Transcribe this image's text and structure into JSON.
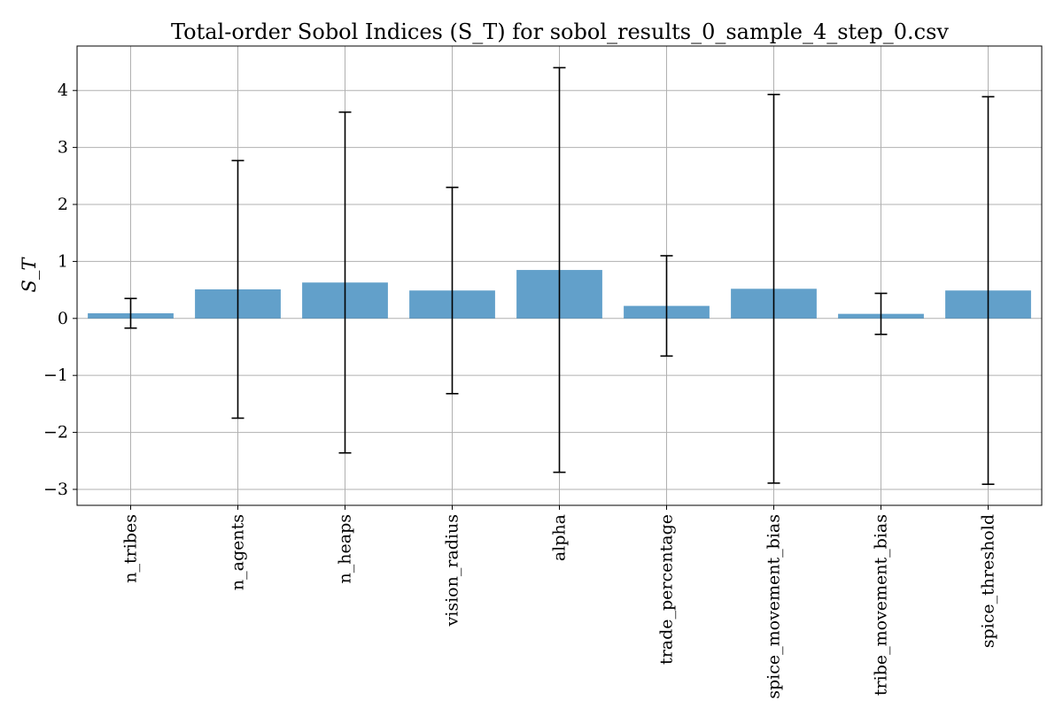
{
  "chart_data": {
    "type": "bar",
    "title": "Total-order Sobol Indices (S_T) for sobol_results_0_sample_4_step_0.csv",
    "xlabel": "",
    "ylabel": "S_T",
    "categories": [
      "n_tribes",
      "n_agents",
      "n_heaps",
      "vision_radius",
      "alpha",
      "trade_percentage",
      "spice_movement_bias",
      "tribe_movement_bias",
      "spice_threshold"
    ],
    "values": [
      0.09,
      0.51,
      0.63,
      0.49,
      0.85,
      0.22,
      0.52,
      0.08,
      0.49
    ],
    "errors": [
      0.26,
      2.26,
      2.99,
      1.81,
      3.55,
      0.88,
      3.41,
      0.36,
      3.4
    ],
    "ylim": [
      -3.28,
      4.78
    ],
    "yticks": [
      -3,
      -2,
      -1,
      0,
      1,
      2,
      3,
      4
    ],
    "ytick_labels": [
      "−3",
      "−2",
      "−1",
      "0",
      "1",
      "2",
      "3",
      "4"
    ],
    "grid": true,
    "bar_color": "#1f77b4"
  }
}
